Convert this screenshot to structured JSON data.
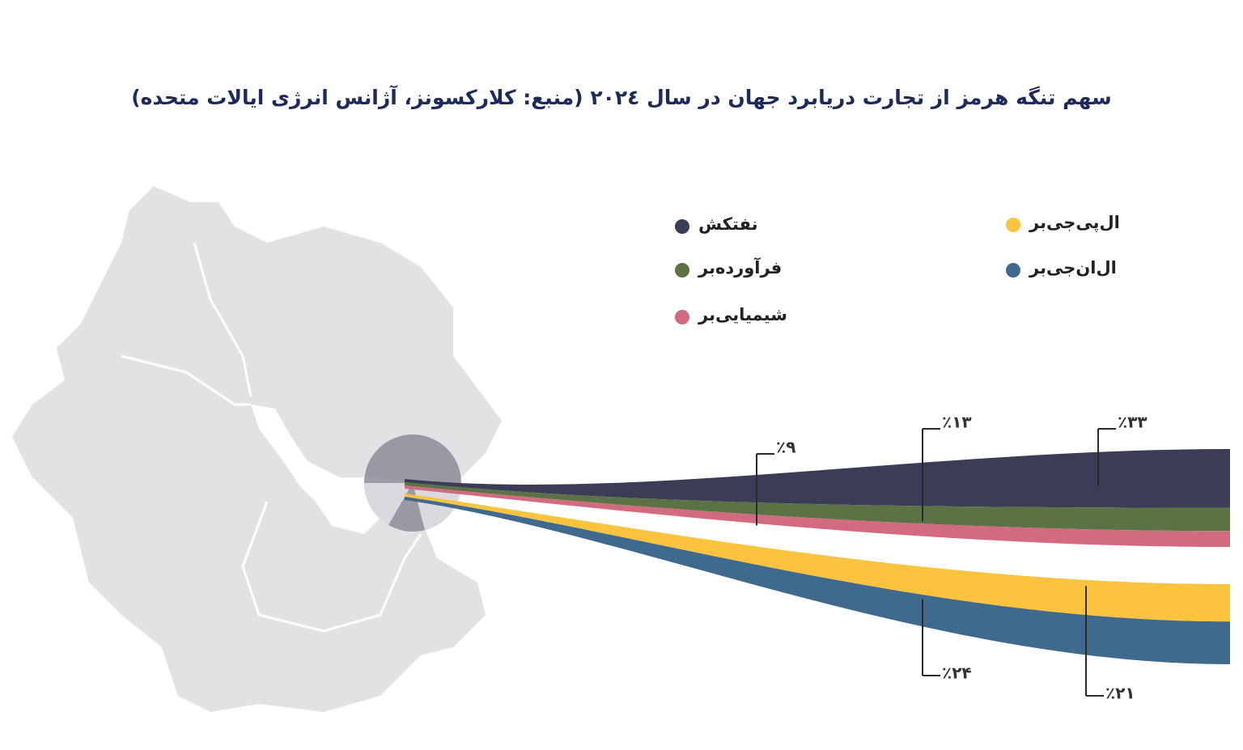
{
  "chart_data": {
    "type": "flow",
    "title": "سهم تنگه هرمز از تجارت دریابرد جهان در سال ۲۰۲٤ (منبع: کلارکسونز، آژانس انرژی ایالات متحده)",
    "series": [
      {
        "name": "نفتکش",
        "color": "#3b3d57",
        "values": [
          33
        ],
        "value_labels": [
          "٪۳۳"
        ]
      },
      {
        "name": "فرآورده‌بر",
        "color": "#5a7244",
        "values": [
          13
        ],
        "value_labels": [
          "٪۱۳"
        ]
      },
      {
        "name": "شیمیایی‌بر",
        "color": "#d26b80",
        "values": [
          9
        ],
        "value_labels": [
          "٪۹"
        ]
      },
      {
        "name": "ال‌پی‌جی‌بر",
        "color": "#fcc43e",
        "values": [
          21
        ],
        "value_labels": [
          "٪۲۱"
        ]
      },
      {
        "name": "ال‌ان‌جی‌بر",
        "color": "#3f6a8e",
        "values": [
          24
        ],
        "value_labels": [
          "٪۲۴"
        ]
      }
    ]
  }
}
